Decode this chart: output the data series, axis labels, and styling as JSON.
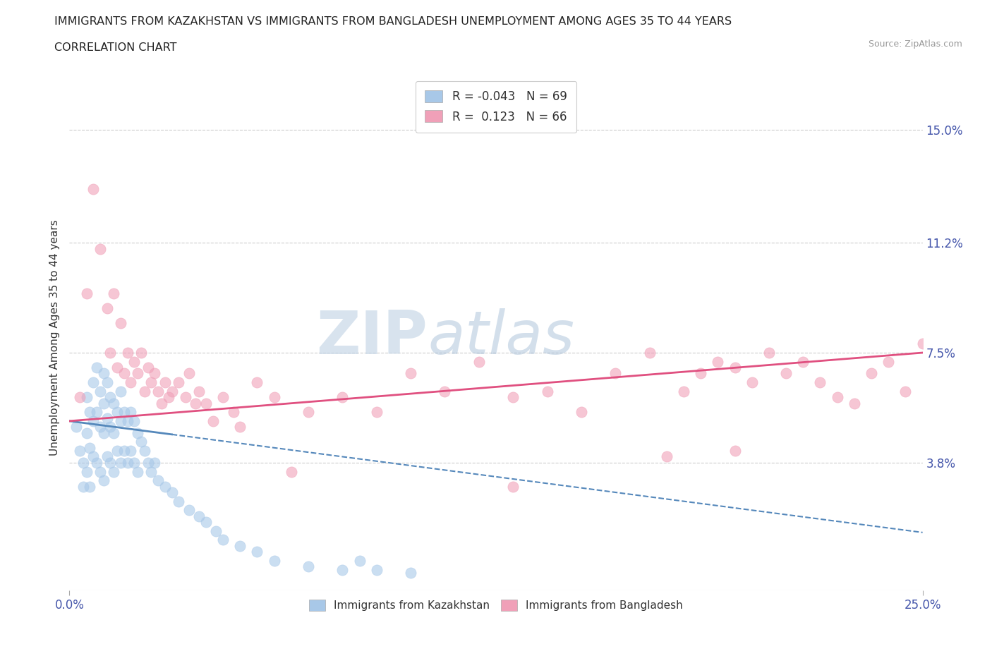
{
  "title_line1": "IMMIGRANTS FROM KAZAKHSTAN VS IMMIGRANTS FROM BANGLADESH UNEMPLOYMENT AMONG AGES 35 TO 44 YEARS",
  "title_line2": "CORRELATION CHART",
  "source_text": "Source: ZipAtlas.com",
  "ylabel": "Unemployment Among Ages 35 to 44 years",
  "xlim": [
    0.0,
    0.25
  ],
  "ylim": [
    -0.005,
    0.165
  ],
  "xtick_labels_edge": [
    "0.0%",
    "25.0%"
  ],
  "xtick_vals_edge": [
    0.0,
    0.25
  ],
  "ytick_labels": [
    "3.8%",
    "7.5%",
    "11.2%",
    "15.0%"
  ],
  "ytick_vals": [
    0.038,
    0.075,
    0.112,
    0.15
  ],
  "legend_r_kaz": "-0.043",
  "legend_n_kaz": "69",
  "legend_r_ban": " 0.123",
  "legend_n_ban": "66",
  "kaz_color": "#a8c8e8",
  "ban_color": "#f0a0b8",
  "kaz_line_color": "#5588bb",
  "ban_line_color": "#e05080",
  "watermark_zip": "ZIP",
  "watermark_atlas": "atlas",
  "background_color": "#ffffff",
  "kaz_scatter_x": [
    0.002,
    0.003,
    0.004,
    0.004,
    0.005,
    0.005,
    0.005,
    0.006,
    0.006,
    0.006,
    0.007,
    0.007,
    0.007,
    0.008,
    0.008,
    0.008,
    0.009,
    0.009,
    0.009,
    0.01,
    0.01,
    0.01,
    0.01,
    0.011,
    0.011,
    0.011,
    0.012,
    0.012,
    0.012,
    0.013,
    0.013,
    0.013,
    0.014,
    0.014,
    0.015,
    0.015,
    0.015,
    0.016,
    0.016,
    0.017,
    0.017,
    0.018,
    0.018,
    0.019,
    0.019,
    0.02,
    0.02,
    0.021,
    0.022,
    0.023,
    0.024,
    0.025,
    0.026,
    0.028,
    0.03,
    0.032,
    0.035,
    0.038,
    0.04,
    0.043,
    0.045,
    0.05,
    0.055,
    0.06,
    0.07,
    0.08,
    0.085,
    0.09,
    0.1
  ],
  "kaz_scatter_y": [
    0.05,
    0.042,
    0.038,
    0.03,
    0.06,
    0.048,
    0.035,
    0.055,
    0.043,
    0.03,
    0.065,
    0.052,
    0.04,
    0.07,
    0.055,
    0.038,
    0.062,
    0.05,
    0.035,
    0.068,
    0.058,
    0.048,
    0.032,
    0.065,
    0.053,
    0.04,
    0.06,
    0.05,
    0.038,
    0.058,
    0.048,
    0.035,
    0.055,
    0.042,
    0.062,
    0.052,
    0.038,
    0.055,
    0.042,
    0.052,
    0.038,
    0.055,
    0.042,
    0.052,
    0.038,
    0.048,
    0.035,
    0.045,
    0.042,
    0.038,
    0.035,
    0.038,
    0.032,
    0.03,
    0.028,
    0.025,
    0.022,
    0.02,
    0.018,
    0.015,
    0.012,
    0.01,
    0.008,
    0.005,
    0.003,
    0.002,
    0.005,
    0.002,
    0.001
  ],
  "ban_scatter_x": [
    0.003,
    0.005,
    0.007,
    0.009,
    0.011,
    0.012,
    0.013,
    0.014,
    0.015,
    0.016,
    0.017,
    0.018,
    0.019,
    0.02,
    0.021,
    0.022,
    0.023,
    0.024,
    0.025,
    0.026,
    0.027,
    0.028,
    0.029,
    0.03,
    0.032,
    0.034,
    0.035,
    0.037,
    0.038,
    0.04,
    0.042,
    0.045,
    0.048,
    0.05,
    0.055,
    0.06,
    0.065,
    0.07,
    0.08,
    0.09,
    0.1,
    0.11,
    0.12,
    0.13,
    0.14,
    0.15,
    0.16,
    0.17,
    0.18,
    0.185,
    0.19,
    0.195,
    0.2,
    0.205,
    0.21,
    0.215,
    0.22,
    0.225,
    0.23,
    0.235,
    0.24,
    0.245,
    0.25,
    0.13,
    0.175,
    0.195
  ],
  "ban_scatter_y": [
    0.06,
    0.095,
    0.13,
    0.11,
    0.09,
    0.075,
    0.095,
    0.07,
    0.085,
    0.068,
    0.075,
    0.065,
    0.072,
    0.068,
    0.075,
    0.062,
    0.07,
    0.065,
    0.068,
    0.062,
    0.058,
    0.065,
    0.06,
    0.062,
    0.065,
    0.06,
    0.068,
    0.058,
    0.062,
    0.058,
    0.052,
    0.06,
    0.055,
    0.05,
    0.065,
    0.06,
    0.035,
    0.055,
    0.06,
    0.055,
    0.068,
    0.062,
    0.072,
    0.06,
    0.062,
    0.055,
    0.068,
    0.075,
    0.062,
    0.068,
    0.072,
    0.07,
    0.065,
    0.075,
    0.068,
    0.072,
    0.065,
    0.06,
    0.058,
    0.068,
    0.072,
    0.062,
    0.078,
    0.03,
    0.04,
    0.042
  ]
}
